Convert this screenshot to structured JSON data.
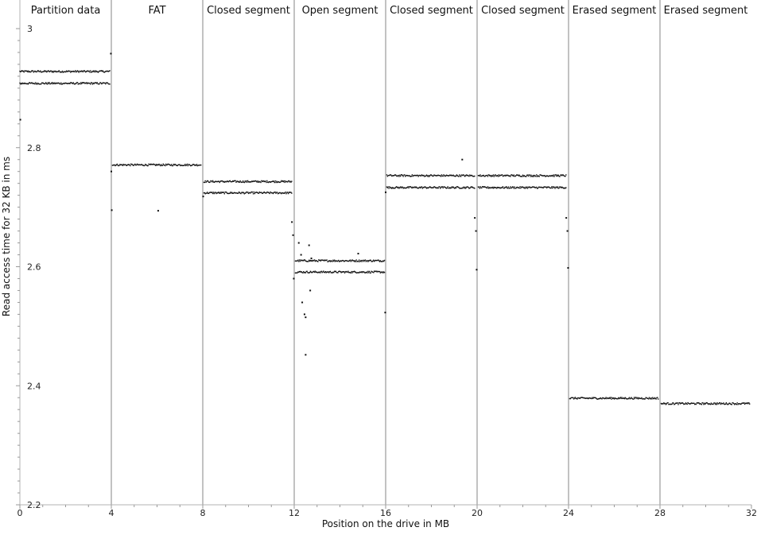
{
  "chart_data": {
    "type": "scatter",
    "title": "",
    "xlabel": "Position on the drive in MB",
    "ylabel": "Read access time for 32 KB in ms",
    "xlim": [
      0,
      32
    ],
    "ylim": [
      2.2,
      3.0
    ],
    "x_ticks": [
      0,
      4,
      8,
      12,
      16,
      20,
      24,
      28,
      32
    ],
    "y_ticks": [
      2.2,
      2.4,
      2.6,
      2.8,
      3.0
    ],
    "y_tick_labels": [
      "2.2",
      "2.4",
      "2.6",
      "2.8",
      "3"
    ],
    "segment_boundaries": [
      4,
      8,
      12,
      16,
      20,
      24,
      28
    ],
    "segments": [
      {
        "label": "Partition data",
        "x_start": 0,
        "x_end": 4
      },
      {
        "label": "FAT",
        "x_start": 4,
        "x_end": 8
      },
      {
        "label": "Closed segment",
        "x_start": 8,
        "x_end": 12
      },
      {
        "label": "Open segment",
        "x_start": 12,
        "x_end": 16
      },
      {
        "label": "Closed segment",
        "x_start": 16,
        "x_end": 20
      },
      {
        "label": "Closed segment",
        "x_start": 20,
        "x_end": 24
      },
      {
        "label": "Erased segment",
        "x_start": 24,
        "x_end": 28
      },
      {
        "label": "Erased segment",
        "x_start": 28,
        "x_end": 32
      }
    ],
    "bands": [
      {
        "x_start": 0.0,
        "x_end": 3.95,
        "y": 2.928
      },
      {
        "x_start": 0.0,
        "x_end": 3.95,
        "y": 2.908
      },
      {
        "x_start": 4.05,
        "x_end": 7.95,
        "y": 2.771
      },
      {
        "x_start": 8.05,
        "x_end": 11.9,
        "y": 2.743
      },
      {
        "x_start": 8.05,
        "x_end": 11.9,
        "y": 2.724
      },
      {
        "x_start": 12.05,
        "x_end": 15.95,
        "y": 2.61
      },
      {
        "x_start": 12.05,
        "x_end": 15.95,
        "y": 2.591
      },
      {
        "x_start": 16.05,
        "x_end": 19.9,
        "y": 2.753
      },
      {
        "x_start": 16.05,
        "x_end": 19.9,
        "y": 2.733
      },
      {
        "x_start": 20.05,
        "x_end": 23.9,
        "y": 2.753
      },
      {
        "x_start": 20.05,
        "x_end": 23.9,
        "y": 2.733
      },
      {
        "x_start": 24.05,
        "x_end": 27.95,
        "y": 2.379
      },
      {
        "x_start": 28.05,
        "x_end": 31.95,
        "y": 2.37
      }
    ],
    "outliers": [
      {
        "x": 0.02,
        "y": 2.847
      },
      {
        "x": 3.98,
        "y": 2.958
      },
      {
        "x": 4.0,
        "y": 2.76
      },
      {
        "x": 4.02,
        "y": 2.695
      },
      {
        "x": 6.05,
        "y": 2.694
      },
      {
        "x": 8.02,
        "y": 2.718
      },
      {
        "x": 11.9,
        "y": 2.675
      },
      {
        "x": 11.95,
        "y": 2.653
      },
      {
        "x": 11.98,
        "y": 2.58
      },
      {
        "x": 12.2,
        "y": 2.64
      },
      {
        "x": 12.3,
        "y": 2.62
      },
      {
        "x": 12.35,
        "y": 2.54
      },
      {
        "x": 12.45,
        "y": 2.52
      },
      {
        "x": 12.5,
        "y": 2.515
      },
      {
        "x": 12.5,
        "y": 2.452
      },
      {
        "x": 12.65,
        "y": 2.636
      },
      {
        "x": 12.75,
        "y": 2.614
      },
      {
        "x": 12.7,
        "y": 2.56
      },
      {
        "x": 14.8,
        "y": 2.622
      },
      {
        "x": 15.98,
        "y": 2.523
      },
      {
        "x": 16.0,
        "y": 2.725
      },
      {
        "x": 19.35,
        "y": 2.78
      },
      {
        "x": 19.9,
        "y": 2.682
      },
      {
        "x": 19.95,
        "y": 2.66
      },
      {
        "x": 19.98,
        "y": 2.595
      },
      {
        "x": 23.9,
        "y": 2.682
      },
      {
        "x": 23.95,
        "y": 2.66
      },
      {
        "x": 23.98,
        "y": 2.598
      }
    ],
    "grid": false,
    "legend": "none"
  }
}
